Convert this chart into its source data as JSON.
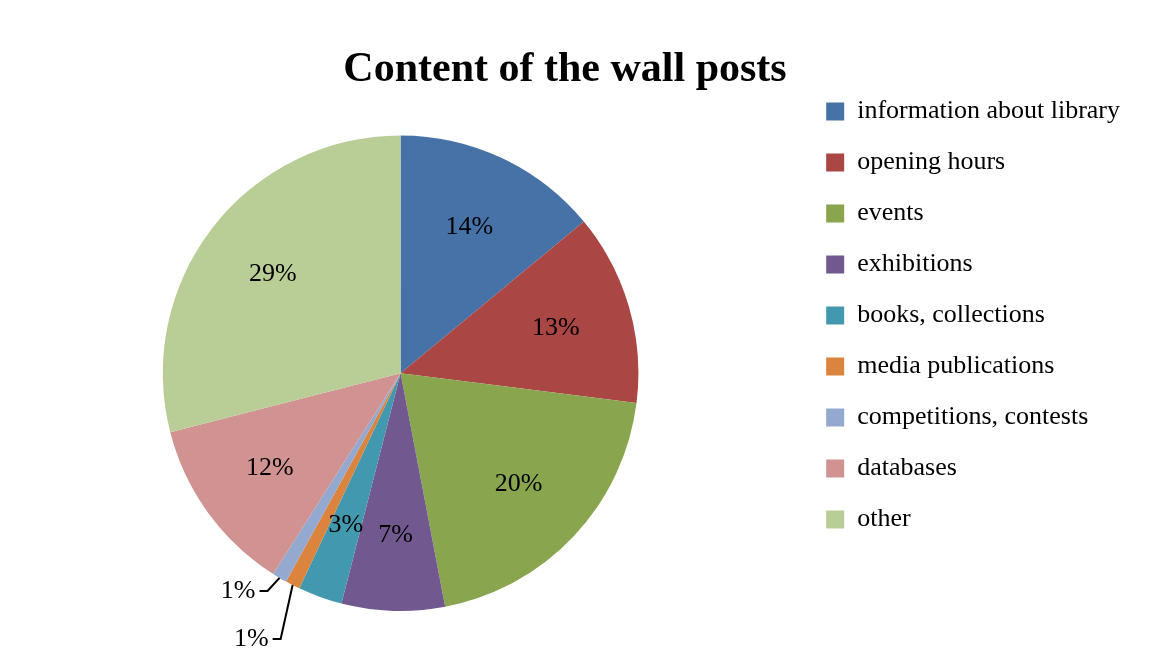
{
  "chart_data": {
    "type": "pie",
    "title": "Content of the wall posts",
    "categories": [
      "information about library",
      "opening hours",
      "events",
      "exhibitions",
      "books, collections",
      "media publications",
      "competitions, contests",
      "databases",
      "other"
    ],
    "values": [
      14,
      13,
      20,
      7,
      3,
      1,
      1,
      12,
      29
    ],
    "colors": [
      "#4672a8",
      "#aa4644",
      "#89a54e",
      "#71588f",
      "#4298af",
      "#db843d",
      "#93a9cf",
      "#d19392",
      "#b9cd96"
    ],
    "value_labels": [
      "14%",
      "13%",
      "20%",
      "7%",
      "3%",
      "1%",
      "1%",
      "12%",
      "29%"
    ],
    "legend": "right"
  }
}
